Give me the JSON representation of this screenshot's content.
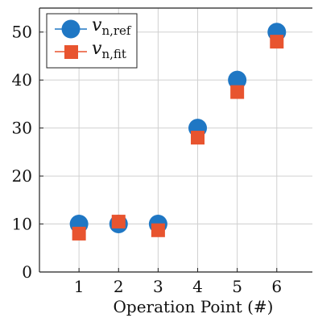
{
  "chart_data": {
    "type": "scatter",
    "x": [
      1,
      2,
      3,
      4,
      5,
      6
    ],
    "xlabel": "Operation Point (#)",
    "ylabel": "",
    "xlim": [
      0,
      6.9
    ],
    "ylim": [
      0,
      55
    ],
    "xticks": [
      "1",
      "2",
      "3",
      "4",
      "5",
      "6"
    ],
    "yticks": [
      "0",
      "10",
      "20",
      "30",
      "40",
      "50"
    ],
    "grid": true,
    "legend_position": "top-left",
    "series": [
      {
        "name_main": "v",
        "name_sub": "n,ref",
        "marker": "circle",
        "color": "#1f77c4",
        "values": [
          10,
          10,
          10,
          30,
          40,
          50
        ]
      },
      {
        "name_main": "v",
        "name_sub": "n,fit",
        "marker": "square",
        "color": "#e8542f",
        "values": [
          8,
          10.5,
          8.7,
          28,
          37.5,
          48
        ]
      }
    ]
  }
}
